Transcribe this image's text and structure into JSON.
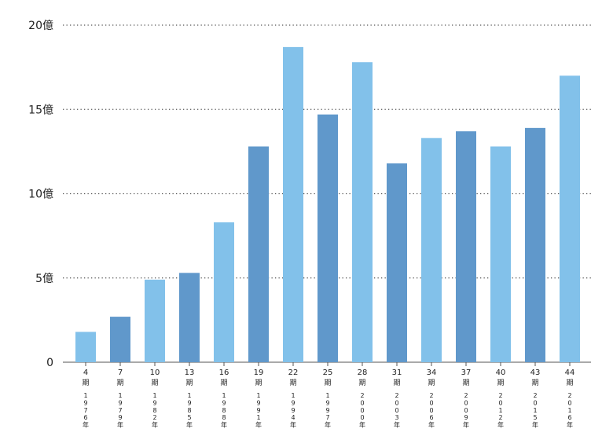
{
  "chart_data": {
    "type": "bar",
    "y_ticks": [
      "0",
      "5億",
      "10億",
      "15億",
      "20億"
    ],
    "y_tick_values": [
      0,
      5,
      10,
      15,
      20
    ],
    "ylim": [
      0,
      20
    ],
    "y_unit": "億",
    "grid": "horizontal dotted",
    "categories": [
      {
        "period": "4",
        "period_suffix": "期",
        "year": "1976",
        "year_suffix": "年"
      },
      {
        "period": "7",
        "period_suffix": "期",
        "year": "1979",
        "year_suffix": "年"
      },
      {
        "period": "10",
        "period_suffix": "期",
        "year": "1982",
        "year_suffix": "年"
      },
      {
        "period": "13",
        "period_suffix": "期",
        "year": "1985",
        "year_suffix": "年"
      },
      {
        "period": "16",
        "period_suffix": "期",
        "year": "1988",
        "year_suffix": "年"
      },
      {
        "period": "19",
        "period_suffix": "期",
        "year": "1991",
        "year_suffix": "年"
      },
      {
        "period": "22",
        "period_suffix": "期",
        "year": "1994",
        "year_suffix": "年"
      },
      {
        "period": "25",
        "period_suffix": "期",
        "year": "1997",
        "year_suffix": "年"
      },
      {
        "period": "28",
        "period_suffix": "期",
        "year": "2000",
        "year_suffix": "年"
      },
      {
        "period": "31",
        "period_suffix": "期",
        "year": "2003",
        "year_suffix": "年"
      },
      {
        "period": "34",
        "period_suffix": "期",
        "year": "2006",
        "year_suffix": "年"
      },
      {
        "period": "37",
        "period_suffix": "期",
        "year": "2009",
        "year_suffix": "年"
      },
      {
        "period": "40",
        "period_suffix": "期",
        "year": "2012",
        "year_suffix": "年"
      },
      {
        "period": "43",
        "period_suffix": "期",
        "year": "2015",
        "year_suffix": "年"
      },
      {
        "period": "44",
        "period_suffix": "期",
        "year": "2016",
        "year_suffix": "年"
      }
    ],
    "values": [
      1.8,
      2.7,
      4.9,
      5.3,
      8.3,
      12.8,
      18.7,
      14.7,
      17.8,
      11.8,
      13.3,
      13.7,
      12.8,
      13.9,
      17.0
    ],
    "bar_colors": [
      "#82c1ea",
      "#6098cb",
      "#82c1ea",
      "#6098cb",
      "#82c1ea",
      "#6098cb",
      "#82c1ea",
      "#6098cb",
      "#82c1ea",
      "#6098cb",
      "#82c1ea",
      "#6098cb",
      "#82c1ea",
      "#6098cb",
      "#82c1ea"
    ],
    "colors": {
      "light": "#82c1ea",
      "dark": "#6098cb",
      "grid": "#555555",
      "text": "#222222"
    }
  }
}
